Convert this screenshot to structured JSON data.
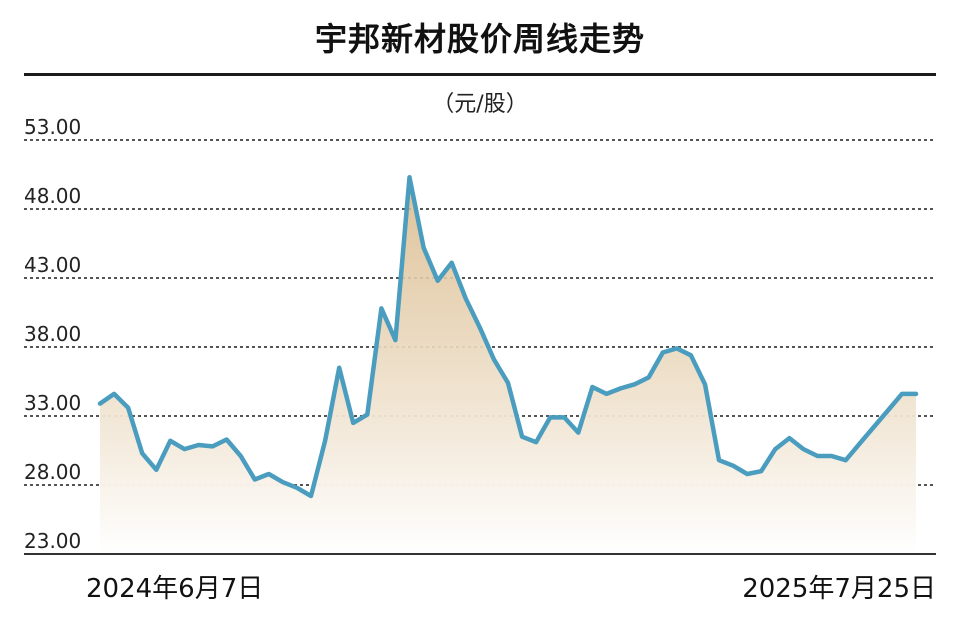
{
  "chart_data": {
    "type": "area",
    "title": "宇邦新材股价周线走势",
    "ylabel": "（元/股）",
    "ylim": [
      23,
      53
    ],
    "y_ticks": [
      "53.00",
      "48.00",
      "43.00",
      "38.00",
      "33.00",
      "28.00",
      "23.00"
    ],
    "x_start_label": "2024年6月7日",
    "x_end_label": "2025年7月25日",
    "grid": true,
    "line_color": "#4a9dbf",
    "fill_color_top": "#d9b989",
    "fill_color_bottom": "#ffffff",
    "values": [
      33.9,
      34.6,
      33.6,
      30.3,
      29.1,
      31.2,
      30.6,
      30.9,
      30.8,
      31.3,
      30.1,
      28.4,
      28.8,
      28.2,
      27.8,
      27.2,
      31.2,
      36.5,
      32.5,
      33.1,
      40.8,
      38.5,
      50.3,
      45.2,
      42.8,
      44.1,
      41.5,
      39.4,
      37.1,
      35.4,
      31.5,
      31.1,
      32.9,
      32.9,
      31.8,
      35.1,
      34.6,
      35.0,
      35.3,
      35.8,
      37.6,
      37.9,
      37.4,
      35.3,
      29.8,
      29.4,
      28.8,
      29.0,
      30.6,
      31.4,
      30.6,
      30.1,
      30.1,
      29.8,
      31.0,
      32.2,
      33.4,
      34.6,
      34.6
    ]
  }
}
